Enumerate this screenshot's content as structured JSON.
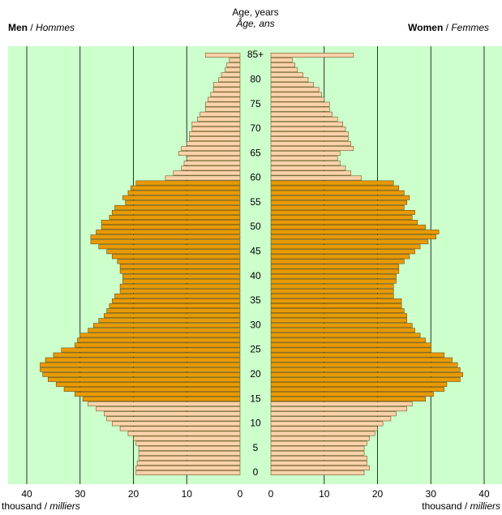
{
  "chart_data": {
    "type": "pyramid",
    "title": "Age, years",
    "title_fr": "Âge, ans",
    "separator": "/",
    "unit": "thousand",
    "unit_fr": "milliers",
    "categories": [
      "0",
      null,
      null,
      null,
      null,
      "5",
      null,
      null,
      null,
      null,
      "10",
      null,
      null,
      null,
      null,
      "15",
      null,
      null,
      null,
      null,
      "20",
      null,
      null,
      null,
      null,
      "25",
      null,
      null,
      null,
      null,
      "30",
      null,
      null,
      null,
      null,
      "35",
      null,
      null,
      null,
      null,
      "40",
      null,
      null,
      null,
      null,
      "45",
      null,
      null,
      null,
      null,
      "50",
      null,
      null,
      null,
      null,
      "55",
      null,
      null,
      null,
      null,
      "60",
      null,
      null,
      null,
      null,
      "65",
      null,
      null,
      null,
      null,
      "70",
      null,
      null,
      null,
      null,
      "75",
      null,
      null,
      null,
      null,
      "80",
      null,
      null,
      null,
      null,
      "85+"
    ],
    "accent_range": [
      15,
      59
    ],
    "accent_color": "#e89a00",
    "background": "#ccffcc",
    "xlim": [
      0,
      43.5
    ],
    "xticks": [
      0,
      10,
      20,
      30,
      40
    ],
    "grid": true,
    "series": [
      {
        "name": "Men",
        "name_fr": "Hommes",
        "color": "#fcd2ac",
        "values": [
          19.5,
          19.5,
          19.3,
          19,
          19,
          19,
          19.5,
          20,
          21,
          22.5,
          24,
          25,
          25.5,
          27,
          28.5,
          29.5,
          31,
          33,
          34.5,
          36,
          37,
          37.5,
          37.5,
          36.5,
          35,
          33.5,
          31,
          30.5,
          30,
          28.5,
          27.5,
          26.5,
          25.5,
          25,
          24.5,
          24,
          23.5,
          22.5,
          22.5,
          22,
          22,
          22.5,
          22.5,
          23,
          24,
          25,
          26.5,
          28,
          28,
          27,
          26,
          26,
          24.5,
          24,
          23.5,
          21.5,
          22,
          21,
          20.5,
          19.5,
          14,
          12.5,
          11,
          10.5,
          10,
          11.5,
          11,
          10,
          9.5,
          9.5,
          9,
          9,
          8,
          7.5,
          6.5,
          6.5,
          6,
          5.5,
          5,
          5,
          4,
          3.5,
          2.8,
          2.5,
          2,
          6.5
        ]
      },
      {
        "name": "Women",
        "name_fr": "Femmes",
        "color": "#fcd2ac",
        "values": [
          17.5,
          18.5,
          18,
          18,
          17.5,
          17.5,
          18,
          18.5,
          19.5,
          20,
          21,
          22.5,
          23.5,
          25.5,
          26.5,
          29,
          30.5,
          32.5,
          33,
          35.5,
          36,
          35.5,
          35,
          34,
          32.5,
          30,
          30,
          29,
          28,
          27,
          26.5,
          25.5,
          25.5,
          25,
          24.5,
          24.5,
          23,
          23,
          23,
          23.5,
          23.5,
          24,
          24,
          25,
          26,
          27,
          28,
          29.5,
          31,
          31.5,
          29,
          27.5,
          26.5,
          27,
          25,
          25.5,
          26,
          25,
          24,
          23,
          17,
          15,
          14,
          13,
          12.5,
          13,
          15.5,
          15,
          14.5,
          14.5,
          14,
          13.5,
          12.5,
          11.5,
          11,
          11,
          10,
          9.5,
          9,
          8,
          7,
          6,
          5,
          4.5,
          4,
          15.5
        ]
      }
    ]
  }
}
